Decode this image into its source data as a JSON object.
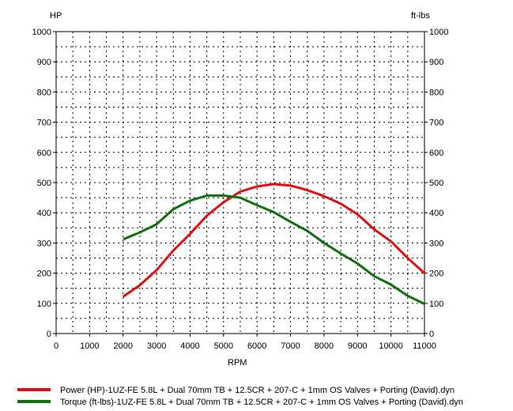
{
  "chart_data": {
    "type": "line",
    "xlabel": "RPM",
    "ylabel_left": "HP",
    "ylabel_right": "ft-lbs",
    "xlim": [
      0,
      11000
    ],
    "ylim": [
      0,
      1000
    ],
    "xticks": [
      0,
      1000,
      2000,
      3000,
      4000,
      5000,
      6000,
      7000,
      8000,
      9000,
      10000,
      11000
    ],
    "yticks": [
      0,
      100,
      200,
      300,
      400,
      500,
      600,
      700,
      800,
      900,
      1000
    ],
    "grid": true,
    "legend": "bottom",
    "x": [
      2000,
      2500,
      3000,
      3500,
      4000,
      4500,
      5000,
      5500,
      6000,
      6500,
      7000,
      7500,
      8000,
      8500,
      9000,
      9500,
      10000,
      10500,
      11000
    ],
    "series": [
      {
        "name": "Power (HP)-1UZ-FE 5.8L + Dual 70mm TB + 12.5CR + 207-C + 1mm OS Valves + Porting (David).dyn",
        "color": "#e01010",
        "values": [
          122,
          160,
          210,
          275,
          330,
          390,
          435,
          470,
          487,
          495,
          490,
          475,
          455,
          430,
          395,
          345,
          305,
          250,
          200
        ]
      },
      {
        "name": "Torque (ft-lbs)-1UZ-FE 5.8L + Dual 70mm TB + 12.5CR + 207-C + 1mm OS Valves + Porting (David).dyn",
        "color": "#107010",
        "values": [
          312,
          335,
          362,
          412,
          440,
          457,
          457,
          450,
          425,
          402,
          370,
          340,
          300,
          265,
          232,
          190,
          162,
          125,
          98
        ]
      }
    ]
  }
}
